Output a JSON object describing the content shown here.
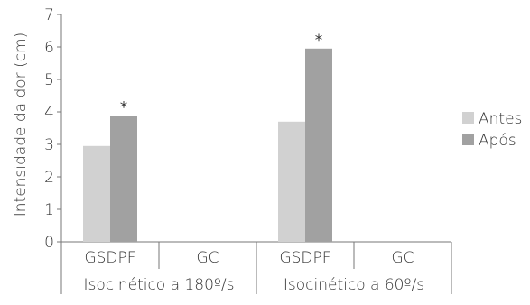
{
  "chart_data": {
    "type": "bar",
    "ylabel": "Intensidade da dor (cm)",
    "ylim": [
      0,
      7
    ],
    "yticks": [
      "0",
      "1",
      "2",
      "3",
      "4",
      "5",
      "6",
      "7"
    ],
    "categories": [
      "GSDPF",
      "GC",
      "GSDPF",
      "GC"
    ],
    "groups": [
      "Isocinético a 180º/s",
      "Isocinético a 60º/s"
    ],
    "series": [
      {
        "name": "Antes",
        "values": [
          2.95,
          null,
          3.7,
          null
        ],
        "color": "#d1d1d1"
      },
      {
        "name": "Após",
        "values": [
          3.87,
          null,
          5.95,
          null
        ],
        "color": "#a1a1a1"
      }
    ],
    "annotations": [
      "*",
      "*"
    ],
    "legend_position": "right"
  }
}
